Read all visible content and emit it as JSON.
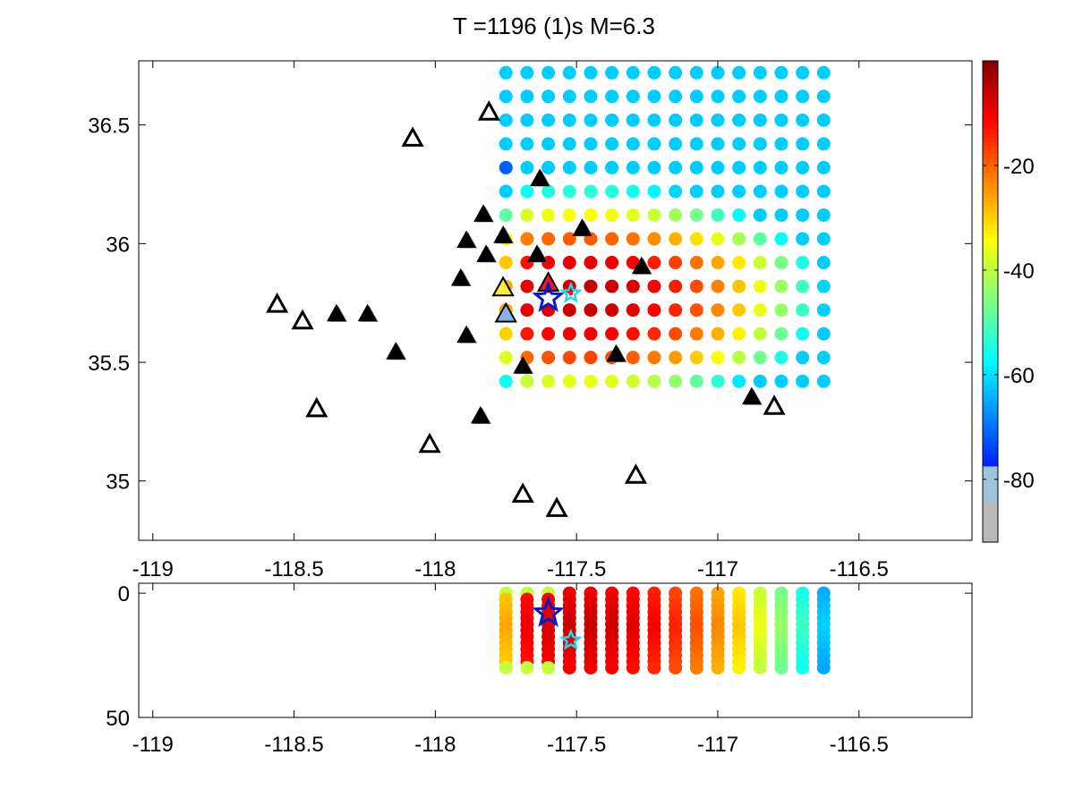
{
  "title": "T =1196 (1)s M=6.3",
  "chart_data": [
    {
      "type": "scatter",
      "panel": "map",
      "title": "T =1196 (1)s M=6.3",
      "xlabel": "",
      "ylabel": "",
      "xlim": [
        -119.05,
        -116.1
      ],
      "ylim": [
        34.75,
        36.77
      ],
      "x_ticks": [
        -119,
        -118.5,
        -118,
        -117.5,
        -117,
        -116.5
      ],
      "x_tick_labels": [
        "-119",
        "-118.5",
        "-118",
        "-117.5",
        "-117",
        "-116.5"
      ],
      "y_ticks": [
        35,
        35.5,
        36,
        36.5
      ],
      "y_tick_labels": [
        "35",
        "35.5",
        "36",
        "36.5"
      ],
      "grid": false,
      "colorbar": {
        "range": [
          -92,
          0
        ],
        "ticks": [
          -80,
          -60,
          -40,
          -20
        ],
        "tick_labels": [
          "-80",
          "-60",
          "-40",
          "-20"
        ],
        "colormap": "jet"
      },
      "grid_points": {
        "lon_start": -117.75,
        "lon_step": 0.075,
        "lon_count": 16,
        "lat_start": 35.42,
        "lat_step": 0.1,
        "lat_count": 14
      },
      "stations_filled": [
        [
          -117.63,
          36.27
        ],
        [
          -117.48,
          36.06
        ],
        [
          -117.83,
          36.12
        ],
        [
          -117.89,
          36.01
        ],
        [
          -117.76,
          36.03
        ],
        [
          -117.64,
          35.95
        ],
        [
          -117.82,
          35.95
        ],
        [
          -117.27,
          35.9
        ],
        [
          -117.91,
          35.85
        ],
        [
          -118.35,
          35.7
        ],
        [
          -118.24,
          35.7
        ],
        [
          -117.89,
          35.61
        ],
        [
          -118.14,
          35.54
        ],
        [
          -117.36,
          35.53
        ],
        [
          -117.69,
          35.48
        ],
        [
          -117.84,
          35.27
        ],
        [
          -116.88,
          35.35
        ]
      ],
      "stations_open": [
        [
          -117.81,
          36.55
        ],
        [
          -118.08,
          36.44
        ],
        [
          -118.56,
          35.74
        ],
        [
          -118.47,
          35.67
        ],
        [
          -118.42,
          35.3
        ],
        [
          -118.02,
          35.15
        ],
        [
          -117.69,
          34.94
        ],
        [
          -117.57,
          34.88
        ],
        [
          -117.29,
          35.02
        ],
        [
          -116.8,
          35.31
        ]
      ],
      "stations_colored": [
        {
          "lon": -117.76,
          "lat": 35.81,
          "color": "#f7ec3c"
        },
        {
          "lon": -117.75,
          "lat": 35.7,
          "color": "#88b3e6"
        },
        {
          "lon": -117.6,
          "lat": 35.83,
          "color": "#e81c1c"
        }
      ],
      "epicenter": {
        "lon": -117.6,
        "lat": 35.77,
        "color": "#0b17c8"
      },
      "aftershock": {
        "lon": -117.52,
        "lat": 35.79,
        "color": "#1ed8f0"
      }
    },
    {
      "type": "scatter",
      "panel": "depth",
      "xlabel": "",
      "ylabel": "",
      "xlim": [
        -119.05,
        -116.1
      ],
      "ylim": [
        50,
        -4
      ],
      "x_ticks": [
        -119,
        -118.5,
        -118,
        -117.5,
        -117,
        -116.5
      ],
      "x_tick_labels": [
        "-119",
        "-118.5",
        "-118",
        "-117.5",
        "-117",
        "-116.5"
      ],
      "y_ticks": [
        0,
        50
      ],
      "y_tick_labels": [
        "0",
        "50"
      ],
      "grid": false,
      "depth_points": {
        "depth_start": 0,
        "depth_step": 2.5,
        "depth_count": 13
      },
      "epicenter_depth": 8,
      "aftershock_depth": 19
    }
  ]
}
